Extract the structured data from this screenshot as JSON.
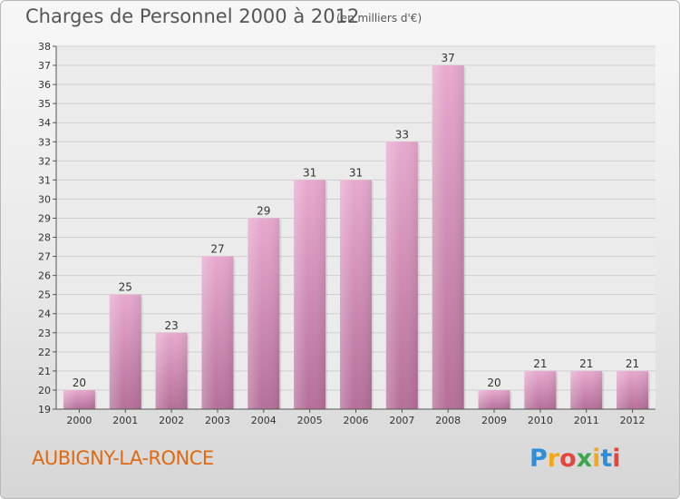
{
  "header": {
    "title": "Charges de Personnel 2000 à 2012",
    "subtitle": "(en milliers d'€)"
  },
  "footer": {
    "commune": "AUBIGNY-LA-RONCE"
  },
  "logo": {
    "letters": [
      "P",
      "r",
      "o",
      "x",
      "i",
      "t",
      "i"
    ],
    "colors": [
      "#2e8fd8",
      "#f2a81c",
      "#e5453f",
      "#3aa84a",
      "#f2a81c",
      "#2e8fd8",
      "#e5453f"
    ]
  },
  "colors": {
    "bar_top": "#e8a9cf",
    "bar_bottom": "#b56f99",
    "axis": "#555555",
    "grid": "#cfcfcf"
  },
  "chart_data": {
    "type": "bar",
    "title": "Charges de Personnel 2000 à 2012",
    "subtitle": "(en milliers d'€)",
    "categories": [
      "2000",
      "2001",
      "2002",
      "2003",
      "2004",
      "2005",
      "2006",
      "2007",
      "2008",
      "2009",
      "2010",
      "2011",
      "2012"
    ],
    "values": [
      20,
      25,
      23,
      27,
      29,
      31,
      31,
      33,
      37,
      20,
      21,
      21,
      21
    ],
    "ylim": [
      19,
      38
    ],
    "yticks": [
      19,
      20,
      21,
      22,
      23,
      24,
      25,
      26,
      27,
      28,
      29,
      30,
      31,
      32,
      33,
      34,
      35,
      36,
      37,
      38
    ],
    "xlabel": "",
    "ylabel": "",
    "grid": true,
    "data_labels": true
  }
}
